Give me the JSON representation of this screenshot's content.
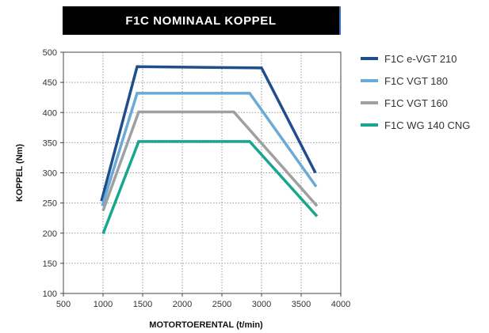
{
  "chart_data": {
    "type": "line",
    "title": "F1C NOMINAAL KOPPEL",
    "xlabel": "MOTORTOERENTAL (t/min)",
    "ylabel": "KOPPEL (Nm)",
    "xlim": [
      500,
      4000
    ],
    "ylim": [
      100,
      500
    ],
    "xticks": [
      500,
      1000,
      1500,
      2000,
      2500,
      3000,
      3500,
      4000
    ],
    "yticks": [
      100,
      150,
      200,
      250,
      300,
      350,
      400,
      450,
      500
    ],
    "grid": true,
    "legend_position": "right",
    "series": [
      {
        "name": "F1C e-VGT 210",
        "color": "#1f4e8c",
        "points": [
          [
            980,
            253
          ],
          [
            1430,
            476
          ],
          [
            3000,
            474
          ],
          [
            3680,
            300
          ]
        ]
      },
      {
        "name": "F1C VGT 180",
        "color": "#6aaad6",
        "points": [
          [
            990,
            245
          ],
          [
            1430,
            432
          ],
          [
            2850,
            432
          ],
          [
            3690,
            277
          ]
        ]
      },
      {
        "name": "F1C VGT 160",
        "color": "#a0a0a0",
        "points": [
          [
            1000,
            237
          ],
          [
            1450,
            401
          ],
          [
            2650,
            401
          ],
          [
            3700,
            245
          ]
        ]
      },
      {
        "name": "F1C WG 140 CNG",
        "color": "#1aa58f",
        "points": [
          [
            1000,
            199
          ],
          [
            1450,
            352
          ],
          [
            2850,
            352
          ],
          [
            3700,
            228
          ]
        ]
      }
    ]
  }
}
